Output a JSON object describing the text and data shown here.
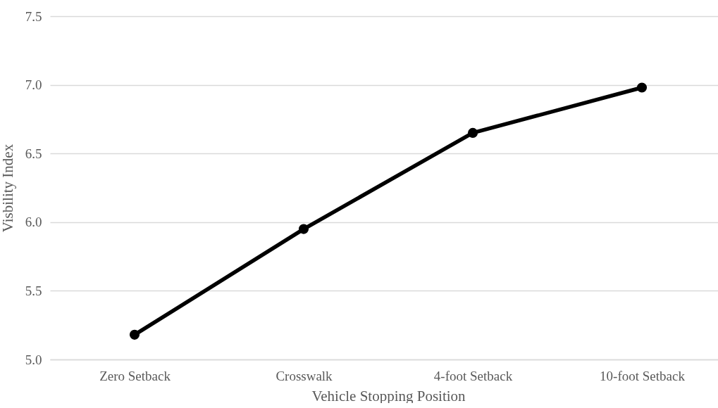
{
  "chart_data": {
    "type": "line",
    "xlabel": "Vehicle Stopping Position",
    "ylabel": "Visbility Index",
    "categories": [
      "Zero Setback",
      "Crosswalk",
      "4-foot Setback",
      "10-foot Setback"
    ],
    "series": [
      {
        "color": "#000000",
        "values": [
          5.18,
          5.95,
          6.65,
          6.98
        ]
      }
    ],
    "ylim": [
      5.0,
      7.5
    ],
    "yticks": [
      {
        "value": 5.0,
        "label": "5.0"
      },
      {
        "value": 5.5,
        "label": "5.5"
      },
      {
        "value": 6.0,
        "label": "6.0"
      },
      {
        "value": 6.5,
        "label": "6.5"
      },
      {
        "value": 7.0,
        "label": "7.0"
      },
      {
        "value": 7.5,
        "label": "7.5"
      }
    ],
    "grid": "y",
    "marker": "circle",
    "line_style": "solid"
  }
}
